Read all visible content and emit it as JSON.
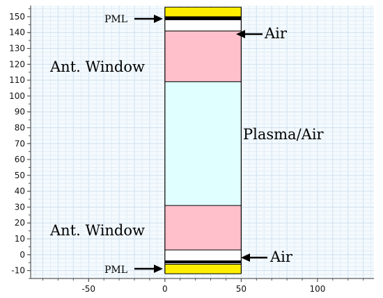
{
  "colors": {
    "pml": "#ffee00",
    "air": "#ffffff",
    "window": "#ffc0cb",
    "plasma": "#e0ffff",
    "grid_minor": "#e3eef6",
    "grid_major": "#cfe0ee",
    "plot_bg": "#f4fafe"
  },
  "axes": {
    "x_range": [
      -88,
      137
    ],
    "y_range": [
      -15,
      157
    ],
    "x_ticks": [
      -50,
      0,
      50,
      100
    ],
    "y_ticks": [
      -10,
      0,
      10,
      20,
      30,
      40,
      50,
      60,
      70,
      80,
      90,
      100,
      110,
      120,
      130,
      140,
      150
    ],
    "x_tick_labels": [
      "-50",
      "0",
      "50",
      "100"
    ],
    "y_tick_labels": [
      "-10",
      "0",
      "10",
      "20",
      "30",
      "40",
      "50",
      "60",
      "70",
      "80",
      "90",
      "100",
      "110",
      "120",
      "130",
      "140",
      "150"
    ]
  },
  "column": {
    "x_start": 0,
    "x_end": 50
  },
  "layers": [
    {
      "name": "PML",
      "y0": -12,
      "y1": -6,
      "color_key": "pml"
    },
    {
      "name": "Air",
      "y0": -4,
      "y1": 3,
      "color_key": "air"
    },
    {
      "name": "Ant. Window",
      "y0": 3,
      "y1": 31,
      "color_key": "window"
    },
    {
      "name": "Plasma/Air",
      "y0": 31,
      "y1": 109,
      "color_key": "plasma"
    },
    {
      "name": "Ant. Window",
      "y0": 109,
      "y1": 141,
      "color_key": "window"
    },
    {
      "name": "Air",
      "y0": 141,
      "y1": 148,
      "color_key": "air"
    },
    {
      "name": "PML",
      "y0": 150,
      "y1": 156,
      "color_key": "pml"
    }
  ],
  "boundary_lines": [
    -12,
    -6,
    -4,
    3,
    31,
    109,
    141,
    148,
    150,
    156
  ],
  "thick_lines": [
    -4.5,
    149
  ],
  "labels": {
    "pml_top": "PML",
    "air_top": "Air",
    "window_top": "Ant. Window",
    "plasma": "Plasma/Air",
    "window_bottom": "Ant. Window",
    "air_bottom": "Air",
    "pml_bottom": "PML"
  }
}
